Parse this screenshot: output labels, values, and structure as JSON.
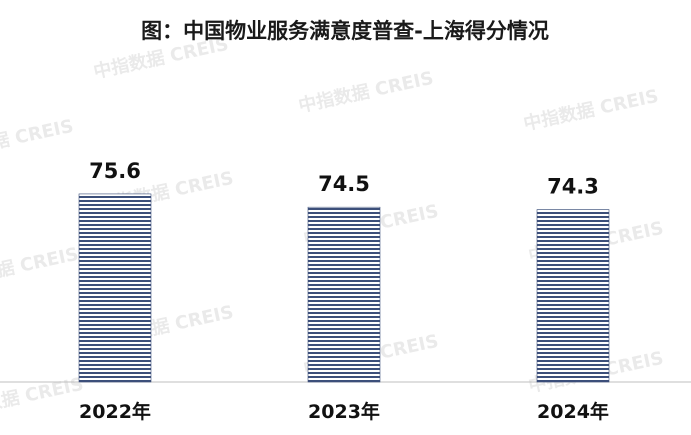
{
  "chart_data": {
    "type": "bar",
    "title": "图：中国物业服务满意度普查-上海得分情况",
    "categories": [
      "2022年",
      "2023年",
      "2024年"
    ],
    "values": [
      75.6,
      74.5,
      74.3
    ],
    "value_labels": [
      "75.6",
      "74.5",
      "74.3"
    ],
    "xlabel": "",
    "ylabel": "",
    "ylim": [
      60,
      78
    ],
    "grid": false,
    "legend": "none",
    "bar_color": "#3c4f7a"
  },
  "watermark": "中指数据 CREIS"
}
